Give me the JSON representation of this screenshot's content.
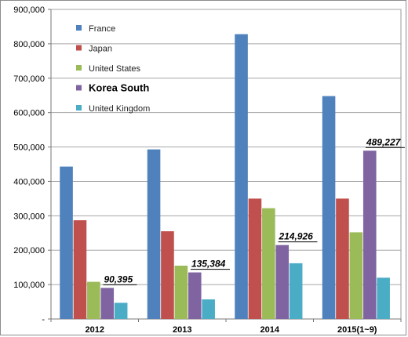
{
  "chart_data": {
    "type": "bar",
    "categories": [
      "2012",
      "2013",
      "2014",
      "2015(1~9)"
    ],
    "series": [
      {
        "name": "France",
        "color": "#4f81bd",
        "values": [
          443000,
          493000,
          828000,
          648000
        ]
      },
      {
        "name": "Japan",
        "color": "#c0504d",
        "values": [
          287000,
          255000,
          350000,
          350000
        ]
      },
      {
        "name": "United States",
        "color": "#9bbb59",
        "values": [
          108000,
          155000,
          322000,
          252000
        ]
      },
      {
        "name": "Korea South",
        "color": "#8064a2",
        "values": [
          90395,
          135384,
          214926,
          489227
        ]
      },
      {
        "name": "United Kingdom",
        "color": "#4bacc6",
        "values": [
          47000,
          57000,
          162000,
          120000
        ]
      }
    ],
    "ylim": [
      0,
      900000
    ],
    "y_ticks": [
      "-",
      "100,000",
      "200,000",
      "300,000",
      "400,000",
      "500,000",
      "600,000",
      "700,000",
      "800,000",
      "900,000"
    ],
    "grid": true,
    "legend_position": "top-left",
    "emphasized_series": "Korea South",
    "data_labels": [
      {
        "series": "Korea South",
        "category": "2012",
        "text": "90,395"
      },
      {
        "series": "Korea South",
        "category": "2013",
        "text": "135,384"
      },
      {
        "series": "Korea South",
        "category": "2014",
        "text": "214,926"
      },
      {
        "series": "Korea South",
        "category": "2015(1~9)",
        "text": "489,227"
      }
    ]
  }
}
